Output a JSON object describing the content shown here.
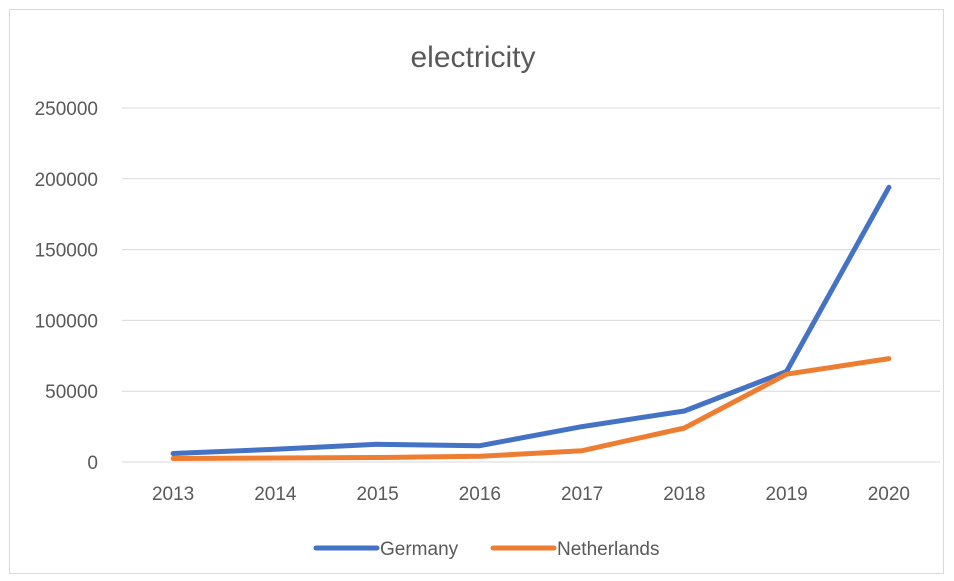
{
  "chart_data": {
    "type": "line",
    "title": "electricity",
    "xlabel": "",
    "ylabel": "",
    "categories": [
      "2013",
      "2014",
      "2015",
      "2016",
      "2017",
      "2018",
      "2019",
      "2020"
    ],
    "ylim": [
      0,
      250000
    ],
    "yticks": [
      "0",
      "50000",
      "100000",
      "150000",
      "200000",
      "250000"
    ],
    "grid": true,
    "legend_position": "bottom",
    "series": [
      {
        "name": "Germany",
        "color": "#4472c4",
        "values": [
          6000,
          9000,
          12500,
          11500,
          25000,
          36000,
          64000,
          194000
        ]
      },
      {
        "name": "Netherlands",
        "color": "#ed7d31",
        "values": [
          2500,
          2800,
          3200,
          4000,
          8000,
          24000,
          62000,
          73000
        ]
      }
    ]
  }
}
